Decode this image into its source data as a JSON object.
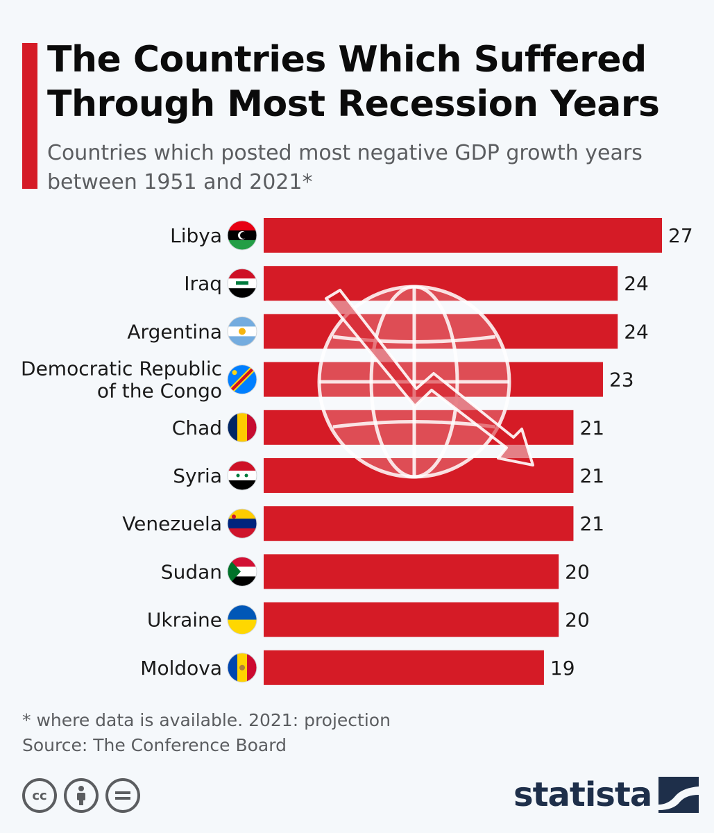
{
  "header": {
    "title_line1": "The Countries Which Suffered",
    "title_line2": "Through Most Recession Years",
    "subtitle_line1": "Countries which posted most negative GDP growth years",
    "subtitle_line2": "between 1951 and 2021*"
  },
  "colors": {
    "accent": "#d51b26",
    "bar": "#d51b26",
    "text": "#1a1a1a",
    "muted": "#5b5d60",
    "brand": "#1e2f4a"
  },
  "chart_data": {
    "type": "bar",
    "orientation": "horizontal",
    "title": "The Countries Which Suffered Through Most Recession Years",
    "subtitle": "Countries which posted most negative GDP growth years between 1951 and 2021*",
    "categories": [
      [
        "Libya"
      ],
      [
        "Iraq"
      ],
      [
        "Argentina"
      ],
      [
        "Democratic Republic",
        "of the Congo"
      ],
      [
        "Chad"
      ],
      [
        "Syria"
      ],
      [
        "Venezuela"
      ],
      [
        "Sudan"
      ],
      [
        "Ukraine"
      ],
      [
        "Moldova"
      ]
    ],
    "values": [
      27,
      24,
      24,
      23,
      21,
      21,
      21,
      20,
      20,
      19
    ],
    "xlim": [
      0,
      27
    ],
    "grid": false,
    "legend": "none",
    "flags": [
      "libya-flag-icon",
      "iraq-flag-icon",
      "argentina-flag-icon",
      "drc-flag-icon",
      "chad-flag-icon",
      "syria-flag-icon",
      "venezuela-flag-icon",
      "sudan-flag-icon",
      "ukraine-flag-icon",
      "moldova-flag-icon"
    ],
    "watermark_icon": "globe-downtrend-icon"
  },
  "footer": {
    "footnote": "* where data is available. 2021: projection",
    "source": "Source: The Conference Board",
    "license_icons": [
      "cc-icon",
      "by-icon",
      "nd-icon"
    ],
    "brand": "statista"
  }
}
